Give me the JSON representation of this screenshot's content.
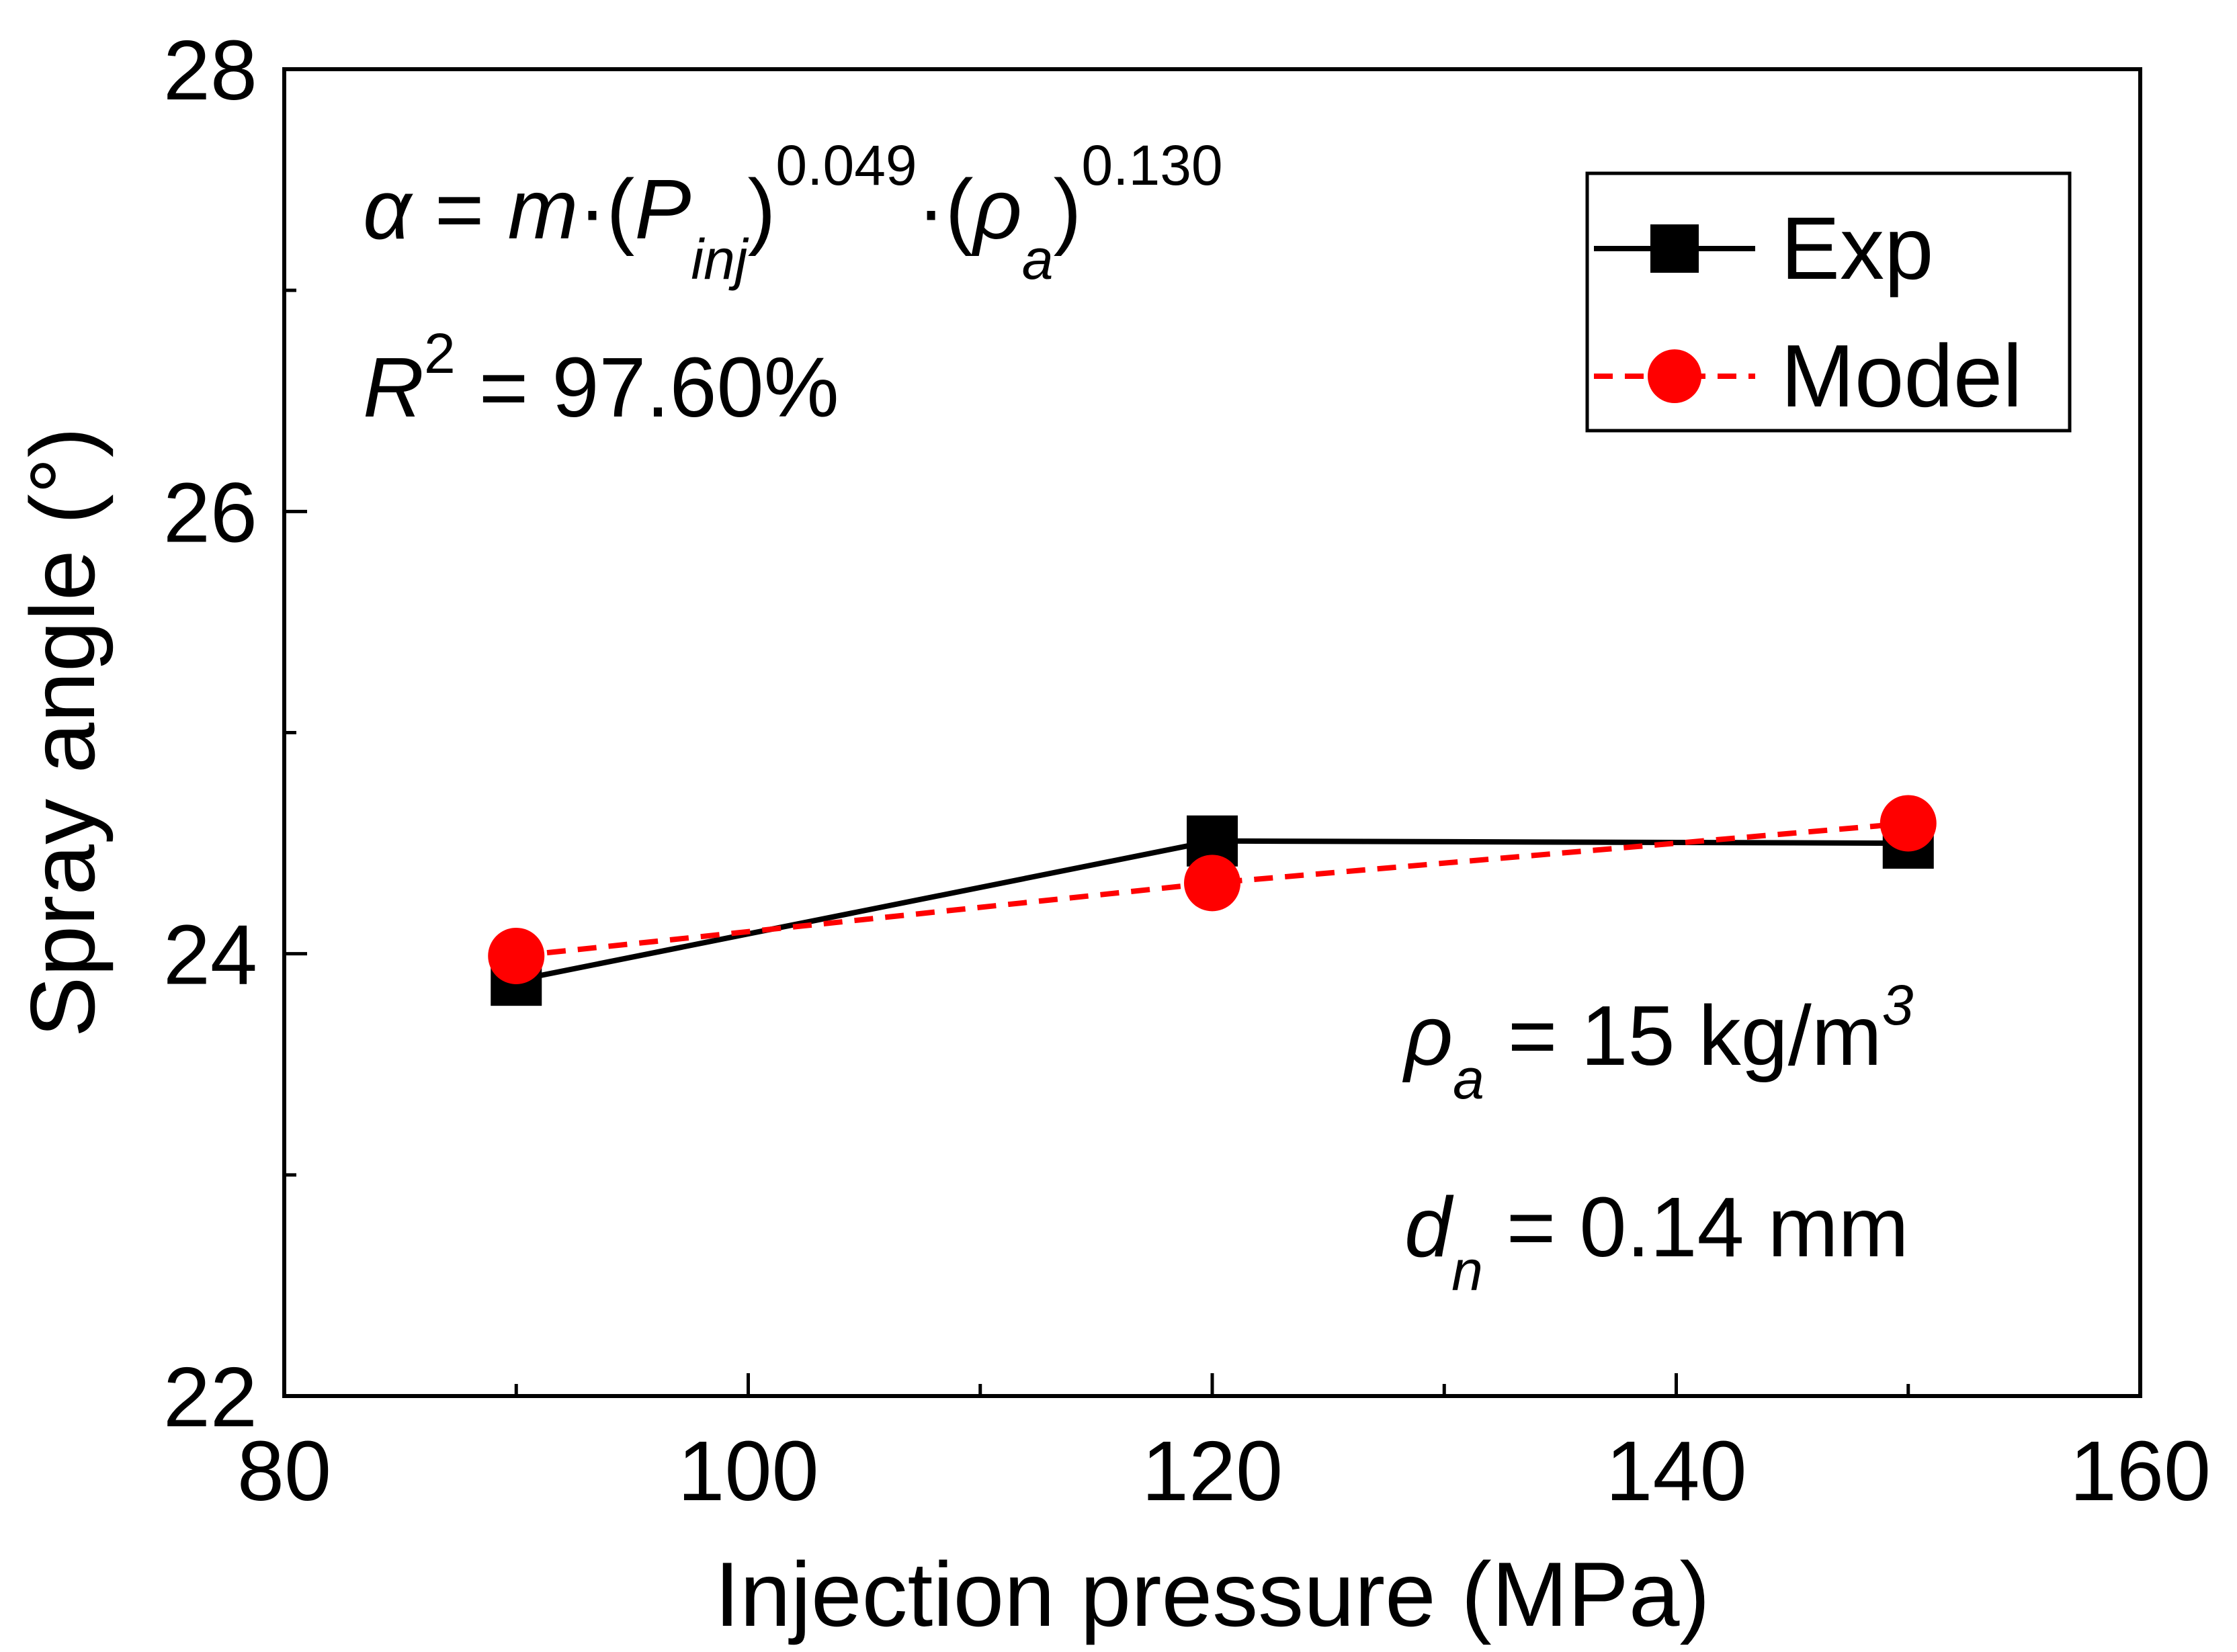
{
  "chart_data": {
    "type": "line",
    "title": "",
    "xlabel": "Injection pressure (MPa)",
    "ylabel": "Spray angle (°)",
    "xlim": [
      80,
      160
    ],
    "ylim": [
      22,
      28
    ],
    "x_ticks": [
      "80",
      "100",
      "120",
      "140",
      "160"
    ],
    "y_ticks": [
      "22",
      "24",
      "26",
      "28"
    ],
    "x_minor_step": 10,
    "grid": false,
    "legend_position": "top-right",
    "x": [
      90,
      120,
      150
    ],
    "series": [
      {
        "name": "Exp",
        "values": [
          23.88,
          24.51,
          24.5
        ],
        "color": "#000000",
        "marker": "square",
        "line": "solid"
      },
      {
        "name": "Model",
        "values": [
          23.99,
          24.32,
          24.59
        ],
        "color": "#ff0000",
        "marker": "circle",
        "line": "dashed"
      }
    ],
    "annotations": {
      "eq_alpha": "α",
      "eq_equals": " = ",
      "eq_m": "m",
      "eq_dot1": "·(",
      "eq_P": "P",
      "eq_P_sub": "inj",
      "eq_close1": ")",
      "eq_exp1": "0.049",
      "eq_dot2": "·(",
      "eq_rho": "ρ",
      "eq_rho_sub": "a",
      "eq_close2": ")",
      "eq_exp2": "0.130",
      "r2_R": "R",
      "r2_sup": "2",
      "r2_value": " = 97.60%",
      "rho_symbol": "ρ",
      "rho_sub": "a",
      "rho_value": " = 15 kg/m",
      "rho_sup": "3",
      "dn_symbol": "d",
      "dn_sub": "n",
      "dn_value": " = 0.14 mm"
    }
  }
}
